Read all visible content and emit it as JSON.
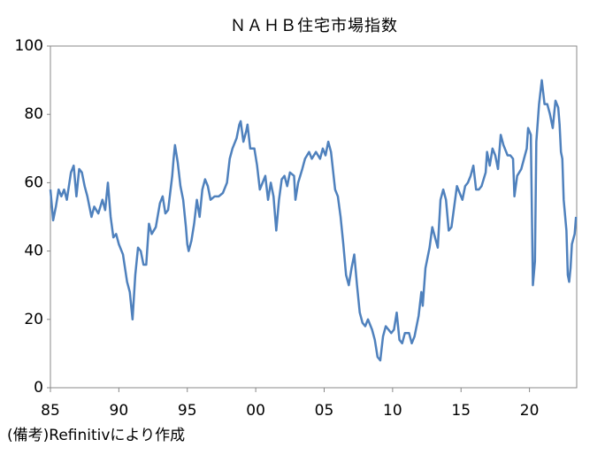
{
  "chart_data": {
    "type": "line",
    "title": "ＮＡＨＢ住宅市場指数",
    "note": "(備考)Refinitivにより作成",
    "xlim": [
      1985,
      2023.45
    ],
    "xticks": [
      {
        "value": 1985,
        "label": "85"
      },
      {
        "value": 1990,
        "label": "90"
      },
      {
        "value": 1995,
        "label": "95"
      },
      {
        "value": 2000,
        "label": "00"
      },
      {
        "value": 2005,
        "label": "05"
      },
      {
        "value": 2010,
        "label": "10"
      },
      {
        "value": 2015,
        "label": "15"
      },
      {
        "value": 2020,
        "label": "20"
      }
    ],
    "ylim": [
      0,
      100
    ],
    "yticks": [
      0,
      20,
      40,
      60,
      80,
      100
    ],
    "grid": false,
    "series": [
      {
        "color": "#4f81bd",
        "x": [
          1985.0,
          1985.2,
          1985.4,
          1985.6,
          1985.8,
          1986.0,
          1986.2,
          1986.5,
          1986.7,
          1986.9,
          1987.1,
          1987.3,
          1987.5,
          1987.7,
          1988.0,
          1988.2,
          1988.5,
          1988.8,
          1989.0,
          1989.2,
          1989.4,
          1989.6,
          1989.8,
          1990.0,
          1990.3,
          1990.6,
          1990.8,
          1991.0,
          1991.2,
          1991.4,
          1991.6,
          1991.8,
          1992.0,
          1992.2,
          1992.4,
          1992.7,
          1993.0,
          1993.2,
          1993.4,
          1993.6,
          1993.9,
          1994.0,
          1994.1,
          1994.3,
          1994.5,
          1994.7,
          1994.9,
          1995.0,
          1995.1,
          1995.3,
          1995.5,
          1995.7,
          1995.9,
          1996.1,
          1996.3,
          1996.5,
          1996.7,
          1997.0,
          1997.3,
          1997.6,
          1997.9,
          1998.1,
          1998.3,
          1998.6,
          1998.8,
          1998.9,
          1999.1,
          1999.3,
          1999.4,
          1999.6,
          1999.9,
          2000.1,
          2000.3,
          2000.5,
          2000.7,
          2000.9,
          2001.1,
          2001.3,
          2001.5,
          2001.7,
          2001.9,
          2002.1,
          2002.3,
          2002.5,
          2002.8,
          2002.9,
          2003.1,
          2003.4,
          2003.6,
          2003.9,
          2004.1,
          2004.4,
          2004.7,
          2004.9,
          2005.1,
          2005.3,
          2005.5,
          2005.8,
          2006.0,
          2006.2,
          2006.4,
          2006.6,
          2006.8,
          2007.0,
          2007.2,
          2007.4,
          2007.6,
          2007.8,
          2008.0,
          2008.2,
          2008.5,
          2008.7,
          2008.9,
          2009.1,
          2009.3,
          2009.5,
          2009.7,
          2009.9,
          2010.1,
          2010.3,
          2010.5,
          2010.7,
          2010.9,
          2011.2,
          2011.4,
          2011.6,
          2011.9,
          2012.1,
          2012.2,
          2012.4,
          2012.7,
          2012.9,
          2013.1,
          2013.3,
          2013.5,
          2013.7,
          2013.9,
          2014.1,
          2014.3,
          2014.5,
          2014.7,
          2014.9,
          2015.1,
          2015.3,
          2015.5,
          2015.7,
          2015.9,
          2016.1,
          2016.3,
          2016.5,
          2016.8,
          2016.9,
          2017.1,
          2017.3,
          2017.5,
          2017.7,
          2017.9,
          2018.1,
          2018.4,
          2018.6,
          2018.8,
          2018.9,
          2019.1,
          2019.4,
          2019.6,
          2019.8,
          2019.9,
          2020.1,
          2020.25,
          2020.4,
          2020.5,
          2020.7,
          2020.9,
          2021.1,
          2021.3,
          2021.5,
          2021.7,
          2021.8,
          2021.9,
          2022.1,
          2022.2,
          2022.3,
          2022.4,
          2022.5,
          2022.7,
          2022.8,
          2022.9,
          2023.0,
          2023.1,
          2023.3,
          2023.4
        ],
        "values": [
          58,
          49,
          53,
          58,
          56,
          58,
          55,
          63,
          65,
          56,
          64,
          63,
          59,
          56,
          50,
          53,
          51,
          55,
          52,
          60,
          50,
          44,
          45,
          42,
          39,
          31,
          28,
          20,
          33,
          41,
          40,
          36,
          36,
          48,
          45,
          47,
          54,
          56,
          51,
          52,
          62,
          67,
          71,
          66,
          59,
          55,
          47,
          42,
          40,
          43,
          48,
          55,
          50,
          58,
          61,
          59,
          55,
          56,
          56,
          57,
          60,
          67,
          70,
          73,
          77,
          78,
          72,
          75,
          77,
          70,
          70,
          65,
          58,
          60,
          62,
          55,
          60,
          56,
          46,
          55,
          61,
          62,
          59,
          63,
          62,
          55,
          60,
          64,
          67,
          69,
          67,
          69,
          67,
          70,
          68,
          72,
          69,
          58,
          56,
          50,
          42,
          33,
          30,
          35,
          39,
          30,
          22,
          19,
          18,
          20,
          17,
          14,
          9,
          8,
          15,
          18,
          17,
          16,
          17,
          22,
          14,
          13,
          16,
          16,
          13,
          15,
          21,
          28,
          24,
          35,
          41,
          47,
          44,
          41,
          55,
          58,
          55,
          46,
          47,
          53,
          59,
          57,
          55,
          59,
          60,
          62,
          65,
          58,
          58,
          59,
          63,
          69,
          65,
          70,
          68,
          64,
          74,
          71,
          68,
          68,
          67,
          56,
          62,
          64,
          67,
          70,
          76,
          74,
          30,
          37,
          72,
          83,
          90,
          83,
          83,
          80,
          76,
          80,
          84,
          82,
          77,
          69,
          67,
          55,
          46,
          33,
          31,
          35,
          42,
          45,
          50
        ]
      }
    ]
  }
}
